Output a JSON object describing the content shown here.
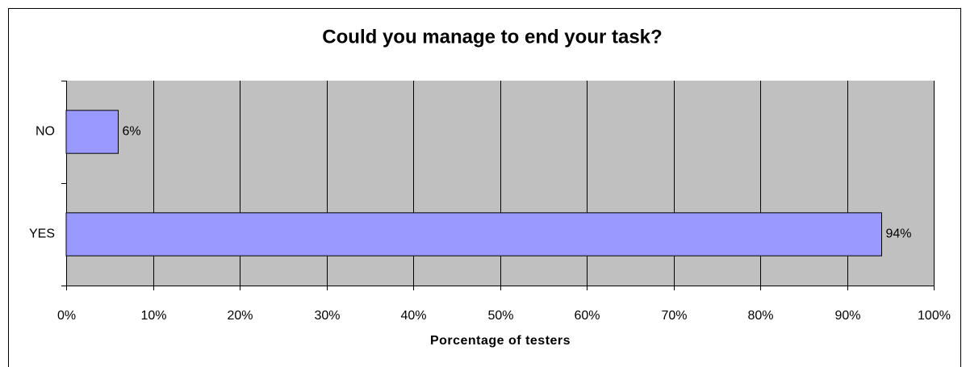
{
  "chart_data": {
    "type": "bar",
    "orientation": "horizontal",
    "title": "Could you manage to end your task?",
    "x_label": "Porcentage of testers",
    "categories": [
      "NO",
      "YES"
    ],
    "values": [
      6,
      94
    ],
    "value_labels": [
      "6%",
      "94%"
    ],
    "color": "#9999ff",
    "plot_background": "#c0c0c0",
    "grid": true,
    "xlim": [
      0,
      100
    ],
    "xticks": [
      {
        "value": 0,
        "label": "0%"
      },
      {
        "value": 10,
        "label": "10%"
      },
      {
        "value": 20,
        "label": "20%"
      },
      {
        "value": 30,
        "label": "30%"
      },
      {
        "value": 40,
        "label": "40%"
      },
      {
        "value": 50,
        "label": "50%"
      },
      {
        "value": 60,
        "label": "60%"
      },
      {
        "value": 70,
        "label": "70%"
      },
      {
        "value": 80,
        "label": "80%"
      },
      {
        "value": 90,
        "label": "90%"
      },
      {
        "value": 100,
        "label": "100%"
      }
    ]
  }
}
